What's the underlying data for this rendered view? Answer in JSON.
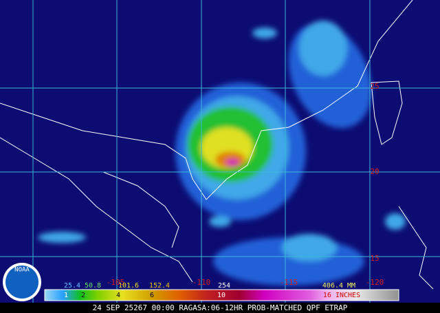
{
  "map": {
    "lat_labels": [
      25,
      20,
      15
    ],
    "lon_labels": [
      -105,
      -110,
      -115,
      -120
    ]
  },
  "legend": {
    "mm_labels": [
      25.4,
      50.8,
      101.6,
      152.4,
      254,
      "406.4 MM"
    ],
    "inch_labels": [
      1,
      2,
      4,
      6,
      10,
      "16 INCHES"
    ]
  },
  "logo": "NOAA",
  "caption": "24 SEP 25267 00:00 RAGASA:06-12HR PROB-MATCHED QPF ETRAP"
}
